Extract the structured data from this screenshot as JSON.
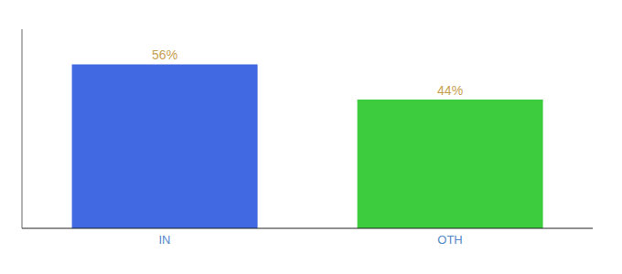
{
  "chart_data": {
    "type": "bar",
    "categories": [
      "IN",
      "OTH"
    ],
    "values": [
      56,
      44
    ],
    "value_labels": [
      "56%",
      "44%"
    ],
    "data_labels": true,
    "colors": [
      "#4169e1",
      "#3dcc3d"
    ],
    "ylim": [
      0,
      68
    ],
    "yticks": [],
    "grid": false,
    "tick_labels": "x"
  }
}
